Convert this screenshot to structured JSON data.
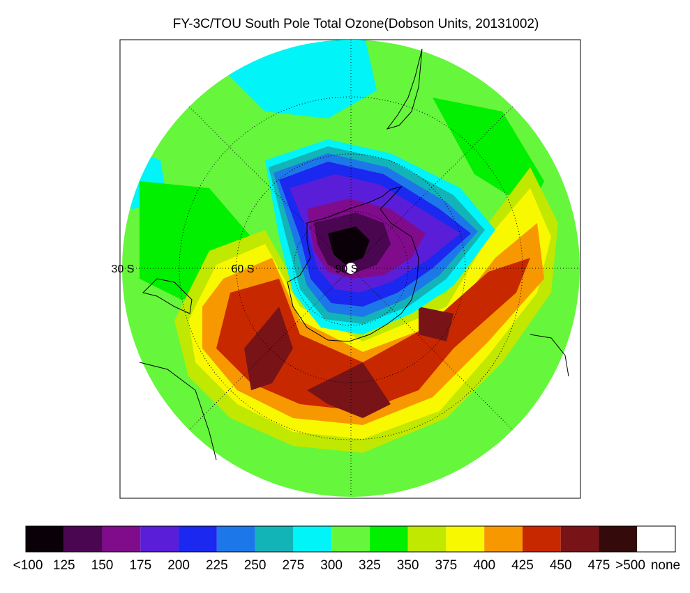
{
  "title": "FY-3C/TOU South Pole Total Ozone(Dobson Units, 20131002)",
  "lat_labels": [
    "30 S",
    "60 S",
    "90 S"
  ],
  "legend": {
    "colors": [
      "#0a0008",
      "#4a0650",
      "#800c8c",
      "#5a1ed8",
      "#1a28f0",
      "#1c78e8",
      "#12b4b8",
      "#00f4f8",
      "#66f63c",
      "#00f000",
      "#c0e800",
      "#f8f800",
      "#f89800",
      "#c82800",
      "#781418",
      "#340a0a",
      "#ffffff"
    ],
    "labels": [
      "<100",
      "125",
      "150",
      "175",
      "200",
      "225",
      "250",
      "275",
      "300",
      "325",
      "350",
      "375",
      "400",
      "425",
      "450",
      "475",
      ">500",
      "none"
    ]
  }
}
